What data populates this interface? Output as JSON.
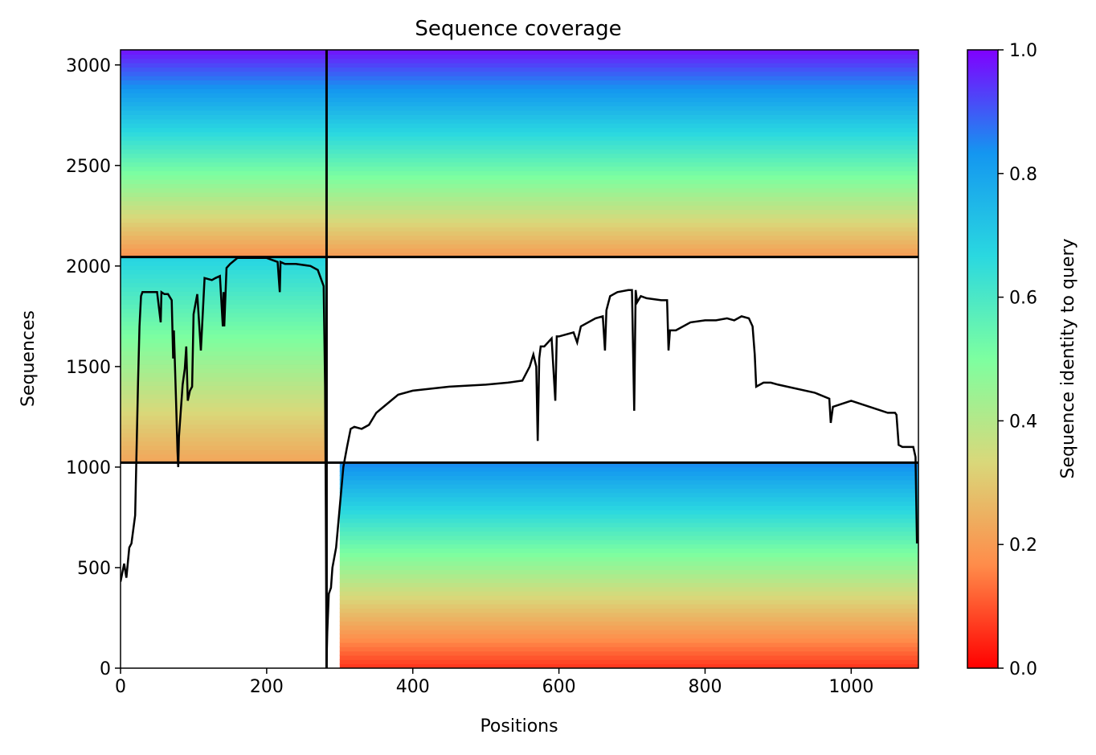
{
  "chart_data": {
    "type": "heatmap",
    "title": "Sequence coverage",
    "xlabel": "Positions",
    "ylabel": "Sequences",
    "xlim": [
      0,
      1092
    ],
    "ylim": [
      0,
      3075
    ],
    "xticks": [
      0,
      200,
      400,
      600,
      800,
      1000
    ],
    "yticks": [
      0,
      500,
      1000,
      1500,
      2000,
      2500,
      3000
    ],
    "colorbar": {
      "label": "Sequence identity to query",
      "min": 0.0,
      "max": 1.0,
      "ticks": [
        "0.0",
        "0.2",
        "0.4",
        "0.6",
        "0.8",
        "1.0"
      ],
      "colormap": "rainbow_r",
      "colors": [
        "#ff0000",
        "#ff8c4a",
        "#d9d87a",
        "#7dffa0",
        "#2ad8e0",
        "#1496f0",
        "#8000ff"
      ]
    },
    "divider_lines": {
      "x": [
        282
      ],
      "y": [
        1022,
        2045
      ]
    },
    "blocks": [
      {
        "name": "A",
        "x": [
          0,
          282
        ],
        "y": [
          1022,
          2045
        ],
        "identity_bottom": 0.22,
        "identity_top": 0.68
      },
      {
        "name": "B",
        "x": [
          282,
          1092
        ],
        "y": [
          2045,
          3075
        ],
        "identity_bottom": 0.2,
        "identity_top": 0.98
      },
      {
        "name": "C",
        "x": [
          0,
          282
        ],
        "y": [
          2045,
          3075
        ],
        "identity_bottom": 0.18,
        "identity_top": 0.98
      },
      {
        "name": "D",
        "x": [
          300,
          1092
        ],
        "y": [
          0,
          1022
        ],
        "identity_bottom": 0.06,
        "identity_top": 0.85
      }
    ],
    "coverage_line": {
      "x": [
        0,
        5,
        8,
        12,
        15,
        20,
        24,
        26,
        28,
        30,
        35,
        50,
        55,
        56,
        60,
        65,
        70,
        72,
        73,
        76,
        78,
        79,
        80,
        85,
        88,
        90,
        92,
        95,
        98,
        100,
        105,
        110,
        115,
        125,
        130,
        136,
        140,
        141,
        142,
        145,
        150,
        160,
        180,
        200,
        215,
        218,
        219,
        225,
        240,
        260,
        270,
        278,
        280,
        281,
        282,
        283,
        285,
        288,
        290,
        295,
        300,
        305,
        310,
        315,
        320,
        330,
        340,
        350,
        360,
        380,
        400,
        450,
        500,
        530,
        550,
        560,
        565,
        569,
        571,
        573,
        575,
        580,
        590,
        595,
        597,
        600,
        620,
        625,
        630,
        650,
        660,
        663,
        665,
        670,
        680,
        695,
        700,
        703,
        705,
        707,
        712,
        720,
        740,
        748,
        750,
        752,
        760,
        780,
        800,
        815,
        830,
        840,
        850,
        860,
        865,
        868,
        870,
        880,
        890,
        900,
        950,
        970,
        972,
        975,
        1000,
        1050,
        1060,
        1062,
        1065,
        1070,
        1085,
        1088,
        1090
      ],
      "y": [
        430,
        520,
        450,
        600,
        620,
        760,
        1420,
        1700,
        1850,
        1870,
        1870,
        1870,
        1720,
        1870,
        1860,
        1860,
        1830,
        1540,
        1680,
        1330,
        1080,
        1000,
        1150,
        1410,
        1490,
        1600,
        1330,
        1380,
        1400,
        1760,
        1860,
        1580,
        1940,
        1930,
        1940,
        1950,
        1700,
        1870,
        1700,
        1990,
        2010,
        2040,
        2040,
        2040,
        2020,
        1870,
        2020,
        2010,
        2010,
        2000,
        1980,
        1900,
        1400,
        800,
        30,
        180,
        370,
        400,
        500,
        600,
        800,
        1000,
        1100,
        1190,
        1200,
        1190,
        1210,
        1270,
        1300,
        1360,
        1380,
        1400,
        1410,
        1420,
        1430,
        1500,
        1560,
        1500,
        1130,
        1540,
        1600,
        1600,
        1640,
        1330,
        1650,
        1650,
        1670,
        1620,
        1700,
        1740,
        1750,
        1580,
        1780,
        1850,
        1870,
        1880,
        1880,
        1280,
        1880,
        1820,
        1850,
        1840,
        1830,
        1830,
        1580,
        1680,
        1680,
        1720,
        1730,
        1730,
        1740,
        1730,
        1750,
        1740,
        1700,
        1560,
        1400,
        1420,
        1420,
        1410,
        1370,
        1340,
        1220,
        1300,
        1330,
        1270,
        1270,
        1260,
        1110,
        1100,
        1100,
        1050,
        620
      ]
    }
  }
}
